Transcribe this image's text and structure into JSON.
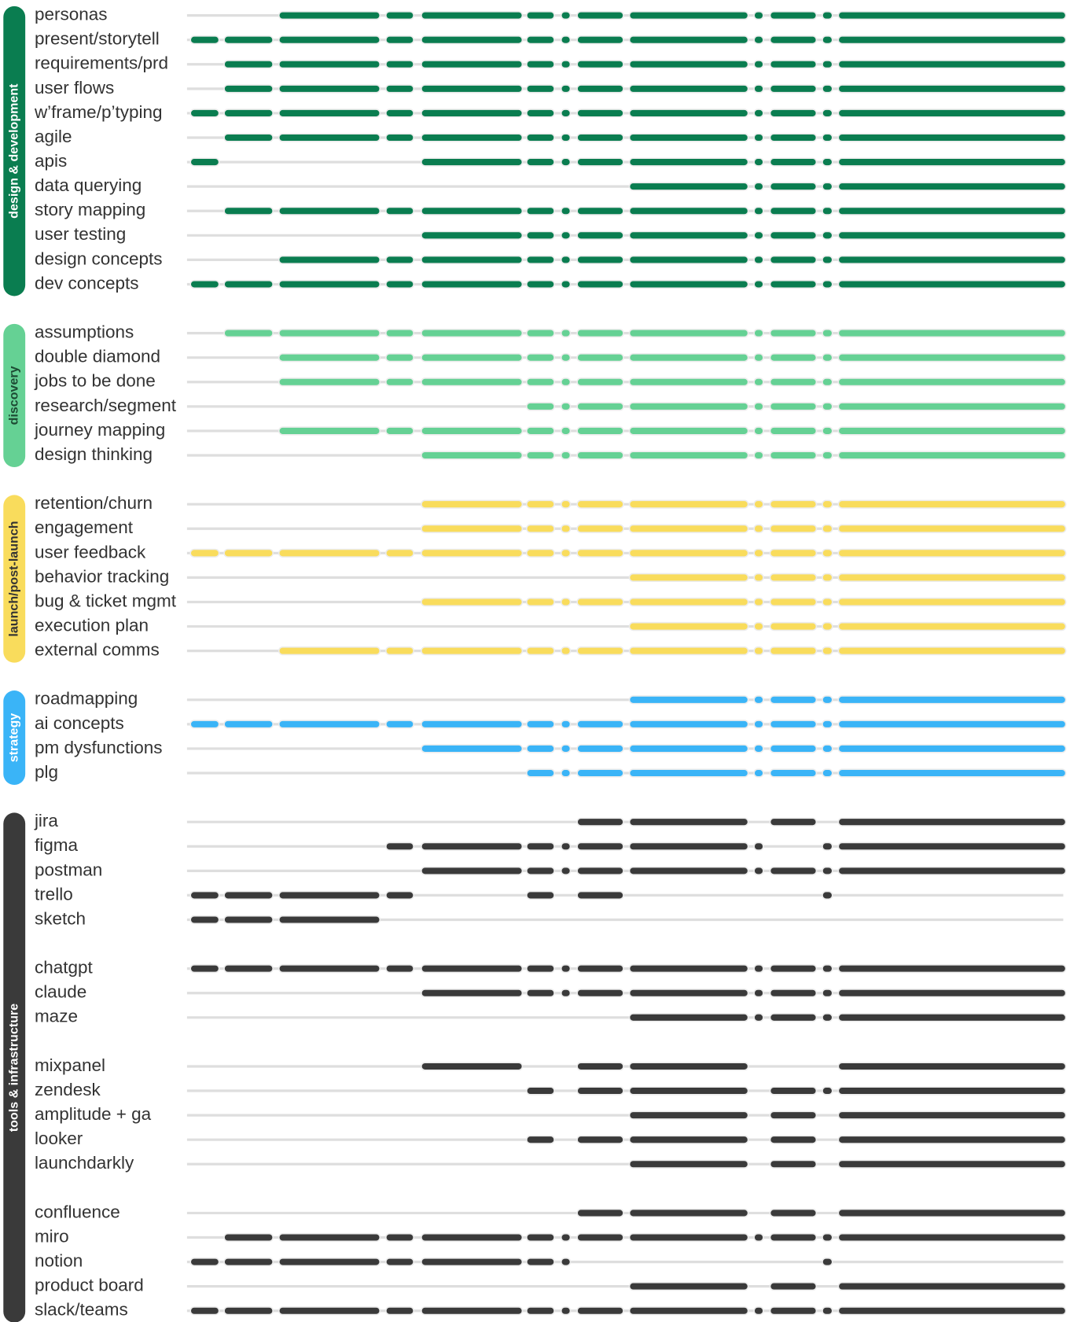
{
  "groups": [
    {
      "label": "design & development",
      "color": "#0a7d50",
      "label_color": "#ffffff",
      "blocks": [
        [
          {
            "label": "personas",
            "active": [
              0,
              0,
              1,
              1,
              1,
              1,
              1,
              1,
              1,
              1,
              1,
              1,
              1
            ]
          },
          {
            "label": "present/storytell",
            "active": [
              1,
              1,
              1,
              1,
              1,
              1,
              1,
              1,
              1,
              1,
              1,
              1,
              1
            ]
          },
          {
            "label": "requirements/prd",
            "active": [
              0,
              1,
              1,
              1,
              1,
              1,
              1,
              1,
              1,
              1,
              1,
              1,
              1
            ]
          },
          {
            "label": "user flows",
            "active": [
              0,
              1,
              1,
              1,
              1,
              1,
              1,
              1,
              1,
              1,
              1,
              1,
              1
            ]
          },
          {
            "label": "w’frame/p’typing",
            "active": [
              1,
              1,
              1,
              1,
              1,
              1,
              1,
              1,
              1,
              1,
              1,
              1,
              1
            ]
          },
          {
            "label": "agile",
            "active": [
              0,
              1,
              1,
              1,
              1,
              1,
              1,
              1,
              1,
              1,
              1,
              1,
              1
            ]
          },
          {
            "label": "apis",
            "active": [
              1,
              0,
              0,
              0,
              1,
              1,
              1,
              1,
              1,
              1,
              1,
              1,
              1
            ]
          },
          {
            "label": "data querying",
            "active": [
              0,
              0,
              0,
              0,
              0,
              0,
              0,
              0,
              1,
              1,
              1,
              1,
              1
            ]
          },
          {
            "label": "story mapping",
            "active": [
              0,
              1,
              1,
              1,
              1,
              1,
              1,
              1,
              1,
              1,
              1,
              1,
              1
            ]
          },
          {
            "label": "user testing",
            "active": [
              0,
              0,
              0,
              0,
              1,
              1,
              1,
              1,
              1,
              1,
              1,
              1,
              1
            ]
          },
          {
            "label": "design concepts",
            "active": [
              0,
              0,
              1,
              1,
              1,
              1,
              1,
              1,
              1,
              1,
              1,
              1,
              1
            ]
          },
          {
            "label": "dev concepts",
            "active": [
              1,
              1,
              1,
              1,
              1,
              1,
              1,
              1,
              1,
              1,
              1,
              1,
              1
            ]
          }
        ]
      ]
    },
    {
      "label": "discovery",
      "color": "#65d194",
      "label_color": "#1d4a33",
      "blocks": [
        [
          {
            "label": "assumptions",
            "active": [
              0,
              1,
              1,
              1,
              1,
              1,
              1,
              1,
              1,
              1,
              1,
              1,
              1
            ]
          },
          {
            "label": "double diamond",
            "active": [
              0,
              0,
              1,
              1,
              1,
              1,
              1,
              1,
              1,
              1,
              1,
              1,
              1
            ]
          },
          {
            "label": "jobs to be done",
            "active": [
              0,
              0,
              1,
              1,
              1,
              1,
              1,
              1,
              1,
              1,
              1,
              1,
              1
            ]
          },
          {
            "label": "research/segment",
            "active": [
              0,
              0,
              0,
              0,
              0,
              1,
              1,
              1,
              1,
              1,
              1,
              1,
              1
            ]
          },
          {
            "label": "journey mapping",
            "active": [
              0,
              0,
              1,
              1,
              1,
              1,
              1,
              1,
              1,
              1,
              1,
              1,
              1
            ]
          },
          {
            "label": "design thinking",
            "active": [
              0,
              0,
              0,
              0,
              1,
              1,
              1,
              1,
              1,
              1,
              1,
              1,
              1
            ]
          }
        ]
      ]
    },
    {
      "label": "launch/post-launch",
      "color": "#f9dc5c",
      "label_color": "#333333",
      "blocks": [
        [
          {
            "label": "retention/churn",
            "active": [
              0,
              0,
              0,
              0,
              1,
              1,
              1,
              1,
              1,
              1,
              1,
              1,
              1
            ]
          },
          {
            "label": "engagement",
            "active": [
              0,
              0,
              0,
              0,
              1,
              1,
              1,
              1,
              1,
              1,
              1,
              1,
              1
            ]
          },
          {
            "label": "user feedback",
            "active": [
              1,
              1,
              1,
              1,
              1,
              1,
              1,
              1,
              1,
              1,
              1,
              1,
              1
            ]
          },
          {
            "label": "behavior tracking",
            "active": [
              0,
              0,
              0,
              0,
              0,
              0,
              0,
              0,
              1,
              1,
              1,
              1,
              1
            ]
          },
          {
            "label": "bug & ticket mgmt",
            "active": [
              0,
              0,
              0,
              0,
              1,
              1,
              1,
              1,
              1,
              1,
              1,
              1,
              1
            ]
          },
          {
            "label": "execution plan",
            "active": [
              0,
              0,
              0,
              0,
              0,
              0,
              0,
              0,
              1,
              1,
              1,
              1,
              1
            ]
          },
          {
            "label": "external comms",
            "active": [
              0,
              0,
              1,
              1,
              1,
              1,
              1,
              1,
              1,
              1,
              1,
              1,
              1
            ]
          }
        ]
      ]
    },
    {
      "label": "strategy",
      "color": "#3ab4f7",
      "label_color": "#ffffff",
      "blocks": [
        [
          {
            "label": "roadmapping",
            "active": [
              0,
              0,
              0,
              0,
              0,
              0,
              0,
              0,
              1,
              1,
              1,
              1,
              1
            ]
          },
          {
            "label": "ai concepts",
            "active": [
              1,
              1,
              1,
              1,
              1,
              1,
              1,
              1,
              1,
              1,
              1,
              1,
              1
            ]
          },
          {
            "label": "pm dysfunctions",
            "active": [
              0,
              0,
              0,
              0,
              1,
              1,
              1,
              1,
              1,
              1,
              1,
              1,
              1
            ]
          },
          {
            "label": "plg",
            "active": [
              0,
              0,
              0,
              0,
              0,
              1,
              1,
              1,
              1,
              1,
              1,
              1,
              1
            ]
          }
        ]
      ]
    },
    {
      "label": "tools & infrastructure",
      "color": "#3a3a3a",
      "label_color": "#ffffff",
      "blocks": [
        [
          {
            "label": "jira",
            "active": [
              0,
              0,
              0,
              0,
              0,
              0,
              0,
              1,
              1,
              0,
              1,
              0,
              1
            ]
          },
          {
            "label": "figma",
            "active": [
              0,
              0,
              0,
              1,
              1,
              1,
              1,
              1,
              1,
              1,
              0,
              1,
              1
            ]
          },
          {
            "label": "postman",
            "active": [
              0,
              0,
              0,
              0,
              1,
              1,
              1,
              1,
              1,
              1,
              1,
              1,
              1
            ]
          },
          {
            "label": "trello",
            "active": [
              1,
              1,
              1,
              1,
              0,
              1,
              0,
              1,
              0,
              0,
              0,
              1,
              0
            ]
          },
          {
            "label": "sketch",
            "active": [
              1,
              1,
              1,
              0,
              0,
              0,
              0,
              0,
              0,
              0,
              0,
              0,
              0
            ]
          }
        ],
        [
          {
            "label": "chatgpt",
            "active": [
              1,
              1,
              1,
              1,
              1,
              1,
              1,
              1,
              1,
              1,
              1,
              1,
              1
            ]
          },
          {
            "label": "claude",
            "active": [
              0,
              0,
              0,
              0,
              1,
              1,
              1,
              1,
              1,
              1,
              1,
              1,
              1
            ]
          },
          {
            "label": "maze",
            "active": [
              0,
              0,
              0,
              0,
              0,
              0,
              0,
              0,
              1,
              1,
              1,
              1,
              1
            ]
          }
        ],
        [
          {
            "label": "mixpanel",
            "active": [
              0,
              0,
              0,
              0,
              1,
              0,
              0,
              1,
              1,
              0,
              0,
              0,
              1
            ]
          },
          {
            "label": "zendesk",
            "active": [
              0,
              0,
              0,
              0,
              0,
              1,
              0,
              1,
              1,
              0,
              1,
              1,
              1
            ]
          },
          {
            "label": "amplitude + ga",
            "active": [
              0,
              0,
              0,
              0,
              0,
              0,
              0,
              0,
              1,
              0,
              1,
              0,
              1
            ]
          },
          {
            "label": "looker",
            "active": [
              0,
              0,
              0,
              0,
              0,
              1,
              0,
              1,
              1,
              0,
              1,
              0,
              1
            ]
          },
          {
            "label": "launchdarkly",
            "active": [
              0,
              0,
              0,
              0,
              0,
              0,
              0,
              0,
              1,
              0,
              1,
              0,
              1
            ]
          }
        ],
        [
          {
            "label": "confluence",
            "active": [
              0,
              0,
              0,
              0,
              0,
              0,
              0,
              1,
              1,
              0,
              1,
              0,
              1
            ]
          },
          {
            "label": "miro",
            "active": [
              0,
              1,
              1,
              1,
              1,
              1,
              1,
              1,
              1,
              1,
              1,
              1,
              1
            ]
          },
          {
            "label": "notion",
            "active": [
              1,
              1,
              1,
              1,
              1,
              1,
              1,
              0,
              0,
              0,
              0,
              1,
              0
            ]
          },
          {
            "label": "product board",
            "active": [
              0,
              0,
              0,
              0,
              0,
              0,
              0,
              0,
              1,
              0,
              1,
              0,
              1
            ]
          },
          {
            "label": "slack/teams",
            "active": [
              1,
              1,
              1,
              1,
              1,
              1,
              1,
              1,
              1,
              1,
              1,
              1,
              1
            ]
          }
        ]
      ]
    }
  ]
}
